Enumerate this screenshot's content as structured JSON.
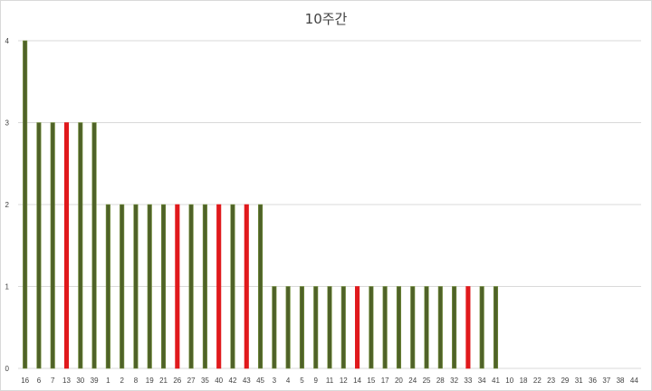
{
  "chart_data": {
    "type": "bar",
    "title": "10주간",
    "xlabel": "",
    "ylabel": "",
    "ylim": [
      0,
      4
    ],
    "yticks": [
      0,
      1,
      2,
      3,
      4
    ],
    "grid": true,
    "legend": "none",
    "categories": [
      "16",
      "6",
      "7",
      "13",
      "30",
      "39",
      "1",
      "2",
      "8",
      "19",
      "21",
      "26",
      "27",
      "35",
      "40",
      "42",
      "43",
      "45",
      "3",
      "4",
      "5",
      "9",
      "11",
      "12",
      "14",
      "15",
      "17",
      "20",
      "24",
      "25",
      "28",
      "32",
      "33",
      "34",
      "41",
      "10",
      "18",
      "22",
      "23",
      "29",
      "31",
      "36",
      "37",
      "38",
      "44"
    ],
    "values": [
      4,
      3,
      3,
      3,
      3,
      3,
      2,
      2,
      2,
      2,
      2,
      2,
      2,
      2,
      2,
      2,
      2,
      2,
      1,
      1,
      1,
      1,
      1,
      1,
      1,
      1,
      1,
      1,
      1,
      1,
      1,
      1,
      1,
      1,
      1,
      0,
      0,
      0,
      0,
      0,
      0,
      0,
      0,
      0,
      0
    ],
    "highlight": [
      "13",
      "26",
      "40",
      "43",
      "14",
      "33"
    ],
    "colors": {
      "default": "#4f6228",
      "default_stroke": "#76923c",
      "highlight": "#e0191c",
      "grid": "#d9d9d9"
    }
  }
}
